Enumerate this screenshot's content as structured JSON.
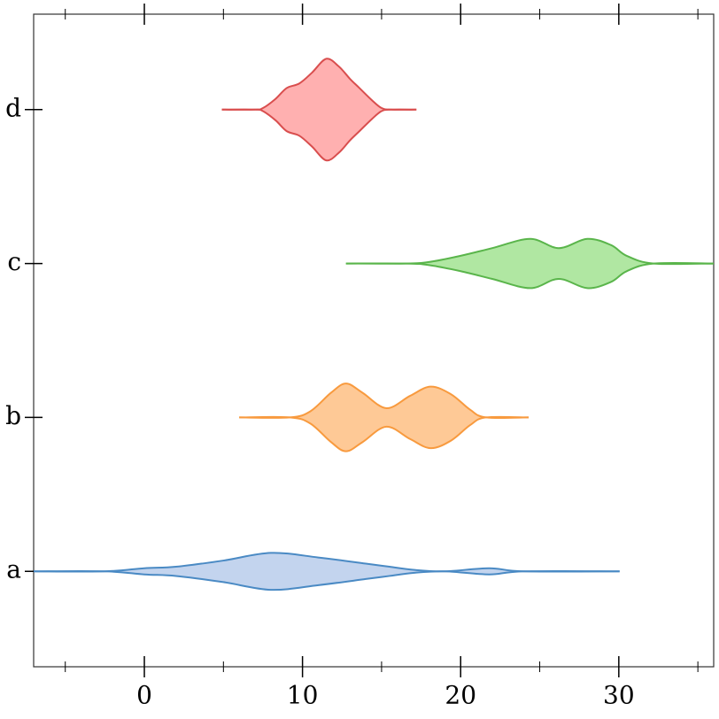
{
  "chart_data": {
    "type": "violin",
    "orientation": "horizontal",
    "categories": [
      "a",
      "b",
      "c",
      "d"
    ],
    "xlim": [
      -7,
      36
    ],
    "xticks": [
      0,
      10,
      20,
      30
    ],
    "xticks_minor": [
      -5,
      5,
      15,
      25,
      35
    ],
    "ylim": [
      -0.62,
      3.62
    ],
    "series": [
      {
        "name": "a",
        "color": "#4a8ac4",
        "fill": "#c3d4ee",
        "x": [
          -7,
          -2.5,
          0,
          2,
          5,
          8,
          11,
          14,
          15.5,
          17,
          19,
          21.8,
          24,
          30.05
        ],
        "widths": [
          0,
          0,
          0.02,
          0.03,
          0.07,
          0.12,
          0.09,
          0.05,
          0.03,
          0.01,
          0,
          0.02,
          0,
          0
        ]
      },
      {
        "name": "b",
        "color": "#f89a3e",
        "fill": "#fec996",
        "x": [
          6,
          9.2,
          10.5,
          11.8,
          12.75,
          13.8,
          15.3,
          16.8,
          18.1,
          19.4,
          20.6,
          21.6,
          24.3
        ],
        "widths": [
          0,
          0,
          0.04,
          0.16,
          0.22,
          0.16,
          0.06,
          0.14,
          0.2,
          0.15,
          0.05,
          0,
          0
        ]
      },
      {
        "name": "c",
        "color": "#5ab54b",
        "fill": "#b0e7a2",
        "x": [
          12.75,
          16.5,
          18,
          20,
          22,
          24.4,
          26.2,
          28,
          29.5,
          30.5,
          32.2,
          36
        ],
        "widths": [
          0,
          0,
          0.01,
          0.05,
          0.1,
          0.16,
          0.1,
          0.16,
          0.12,
          0.05,
          0,
          0
        ]
      },
      {
        "name": "d",
        "color": "#d94e4e",
        "fill": "#ffb0b0",
        "x": [
          4.9,
          7,
          7.5,
          8.3,
          9,
          9.8,
          10.6,
          11.5,
          12.3,
          13,
          13.6,
          14.4,
          15,
          15.6,
          17.2
        ],
        "widths": [
          0,
          0,
          0.01,
          0.07,
          0.14,
          0.17,
          0.24,
          0.33,
          0.28,
          0.2,
          0.14,
          0.06,
          0.01,
          0,
          0
        ]
      }
    ]
  }
}
